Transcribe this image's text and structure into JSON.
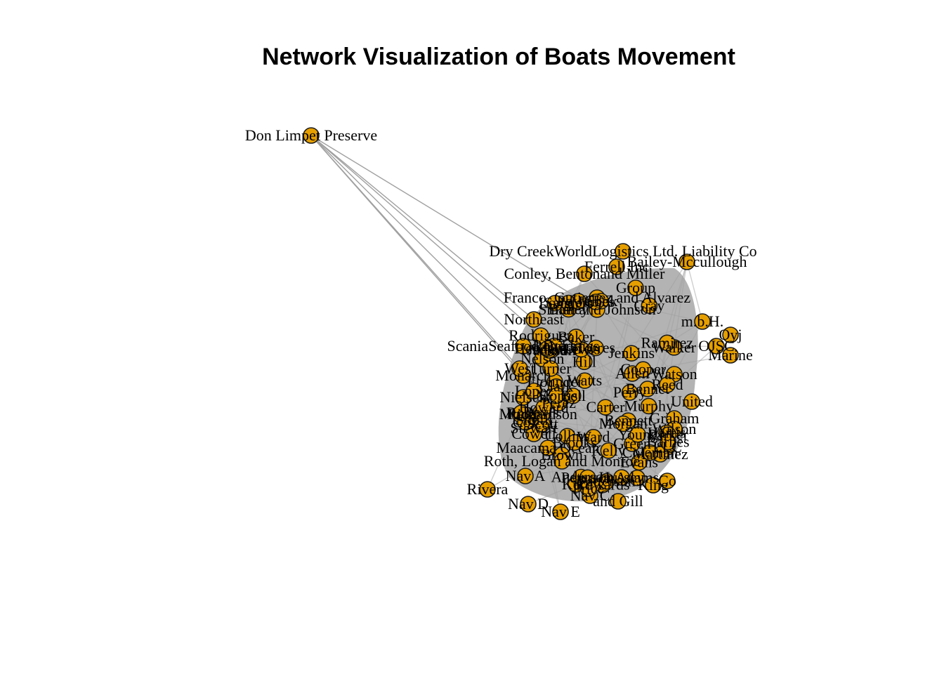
{
  "title": "Network Visualization of Boats Movement",
  "colors": {
    "node_fill": "#E69F00",
    "node_stroke": "#1a1a1a",
    "edge": "#a0a0a0",
    "cluster_shadow": "#b3b3b3",
    "background": "#ffffff"
  },
  "nodes": [
    {
      "id": "don-limpet",
      "label": "Don Limpet Preserve"
    },
    {
      "id": "dry-creek",
      "label": "Dry CreekWorldLogistics Ltd. Liability Co"
    },
    {
      "id": "bailey",
      "label": "Bailey-Mccullough"
    },
    {
      "id": "conley",
      "label": "Conley, Bentonand Miller"
    },
    {
      "id": "ferrell",
      "label": "Ferrell Inc"
    },
    {
      "id": "group",
      "label": "Group"
    },
    {
      "id": "franco",
      "label": "Franco, Gutierrez and Alvarez"
    },
    {
      "id": "smith-johnson",
      "label": "Smith and Johnson"
    },
    {
      "id": "gmbh",
      "label": "m.b.H."
    },
    {
      "id": "northeast",
      "label": "Northeast"
    },
    {
      "id": "rodriguez",
      "label": "Rodriguez"
    },
    {
      "id": "oyj",
      "label": "Oyj"
    },
    {
      "id": "scania",
      "label": "ScaniaSeafood Holdings"
    },
    {
      "id": "ojsc",
      "label": "OJSC"
    },
    {
      "id": "marine",
      "label": "Marine"
    },
    {
      "id": "monarch",
      "label": "Monarch"
    },
    {
      "id": "watson",
      "label": "Watson"
    },
    {
      "id": "flounder",
      "label": "Flounder"
    },
    {
      "id": "reed",
      "label": "Reed"
    },
    {
      "id": "united",
      "label": "United"
    },
    {
      "id": "graham",
      "label": "Graham"
    },
    {
      "id": "stewart",
      "label": "Stewart"
    },
    {
      "id": "wilson",
      "label": "Wilson"
    },
    {
      "id": "maacama",
      "label": "Maacama Ocean"
    },
    {
      "id": "green",
      "label": "Green"
    },
    {
      "id": "llc",
      "label": "LLC"
    },
    {
      "id": "martinez",
      "label": "Martinez"
    },
    {
      "id": "brown",
      "label": "Brown"
    },
    {
      "id": "roth",
      "label": "Roth, Logan and Monroe"
    },
    {
      "id": "hussey",
      "label": "Hussey"
    },
    {
      "id": "rivera",
      "label": "Rivera"
    },
    {
      "id": "king",
      "label": "King"
    },
    {
      "id": "co",
      "label": "Co"
    },
    {
      "id": "gill",
      "label": "and Gill"
    },
    {
      "id": "nav-e",
      "label": "Nav E"
    },
    {
      "id": "nav-a",
      "label": "Nav A"
    },
    {
      "id": "nav-c",
      "label": "Nav C"
    },
    {
      "id": "nav-d",
      "label": "Nav D"
    },
    {
      "id": "moore",
      "label": "Moore"
    },
    {
      "id": "smith",
      "label": "Smith"
    },
    {
      "id": "nielsen",
      "label": "Nielsen"
    },
    {
      "id": "west",
      "label": "West"
    },
    {
      "id": "cowell",
      "label": "Cowell"
    },
    {
      "id": "kerr",
      "label": "Kerr"
    },
    {
      "id": "lopez",
      "label": "Lopez"
    },
    {
      "id": "bennett",
      "label": "Bennett"
    },
    {
      "id": "davis",
      "label": "Davis"
    },
    {
      "id": "harris",
      "label": "Harris"
    },
    {
      "id": "jackson",
      "label": "Jackson"
    },
    {
      "id": "anderson",
      "label": "Anderson"
    },
    {
      "id": "hill",
      "label": "Hill"
    },
    {
      "id": "clark",
      "label": "Clark"
    },
    {
      "id": "lewis",
      "label": "Lewis"
    },
    {
      "id": "nelson",
      "label": "Nelson"
    },
    {
      "id": "carter",
      "label": "Carter"
    },
    {
      "id": "walker",
      "label": "Walker"
    },
    {
      "id": "young",
      "label": "Young"
    },
    {
      "id": "allen",
      "label": "Allen"
    },
    {
      "id": "scott",
      "label": "Scott"
    },
    {
      "id": "baker",
      "label": "Baker"
    },
    {
      "id": "adams",
      "label": "Adams"
    },
    {
      "id": "perez",
      "label": "Perez"
    },
    {
      "id": "turner",
      "label": "Turner"
    },
    {
      "id": "evans",
      "label": "Evans"
    },
    {
      "id": "collins",
      "label": "Collins"
    },
    {
      "id": "parker",
      "label": "Parker"
    },
    {
      "id": "edwards",
      "label": "Edwards"
    },
    {
      "id": "morris",
      "label": "Morris"
    },
    {
      "id": "rogers",
      "label": "Rogers"
    },
    {
      "id": "cook",
      "label": "Cook"
    },
    {
      "id": "morgan",
      "label": "Morgan"
    },
    {
      "id": "bell",
      "label": "Bell"
    },
    {
      "id": "murphy",
      "label": "Murphy"
    },
    {
      "id": "bailey2",
      "label": "Bailey"
    },
    {
      "id": "cooper",
      "label": "Cooper"
    },
    {
      "id": "richardson",
      "label": "Richardson"
    },
    {
      "id": "cox",
      "label": "Cox"
    },
    {
      "id": "howard",
      "label": "Howard"
    },
    {
      "id": "ward",
      "label": "Ward"
    },
    {
      "id": "torres",
      "label": "Torres"
    },
    {
      "id": "peterson",
      "label": "Peterson"
    },
    {
      "id": "gray",
      "label": "Gray"
    },
    {
      "id": "ramirez",
      "label": "Ramirez"
    },
    {
      "id": "james",
      "label": "James"
    },
    {
      "id": "watts",
      "label": "Watts"
    },
    {
      "id": "brooks",
      "label": "Brooks"
    },
    {
      "id": "kelly",
      "label": "Kelly"
    },
    {
      "id": "sanders",
      "label": "Sanders"
    },
    {
      "id": "price",
      "label": "Price"
    },
    {
      "id": "bennet2",
      "label": "Bennet"
    },
    {
      "id": "wood",
      "label": "Wood"
    },
    {
      "id": "barnes",
      "label": "Barnes"
    },
    {
      "id": "ross",
      "label": "Ross"
    },
    {
      "id": "henderson",
      "label": "Henderson"
    },
    {
      "id": "coleman",
      "label": "Coleman"
    },
    {
      "id": "jenkins",
      "label": "Jenkins"
    },
    {
      "id": "perry",
      "label": "Perry"
    },
    {
      "id": "powell",
      "label": "Powell"
    },
    {
      "id": "long",
      "label": "Long"
    },
    {
      "id": "patterson",
      "label": "Patterson"
    }
  ],
  "edges": [
    [
      "don-limpet",
      "northeast"
    ],
    [
      "don-limpet",
      "rodriguez"
    ],
    [
      "don-limpet",
      "scania"
    ],
    [
      "don-limpet",
      "smith-johnson"
    ],
    [
      "don-limpet",
      "monarch"
    ],
    [
      "don-limpet",
      "west"
    ]
  ]
}
